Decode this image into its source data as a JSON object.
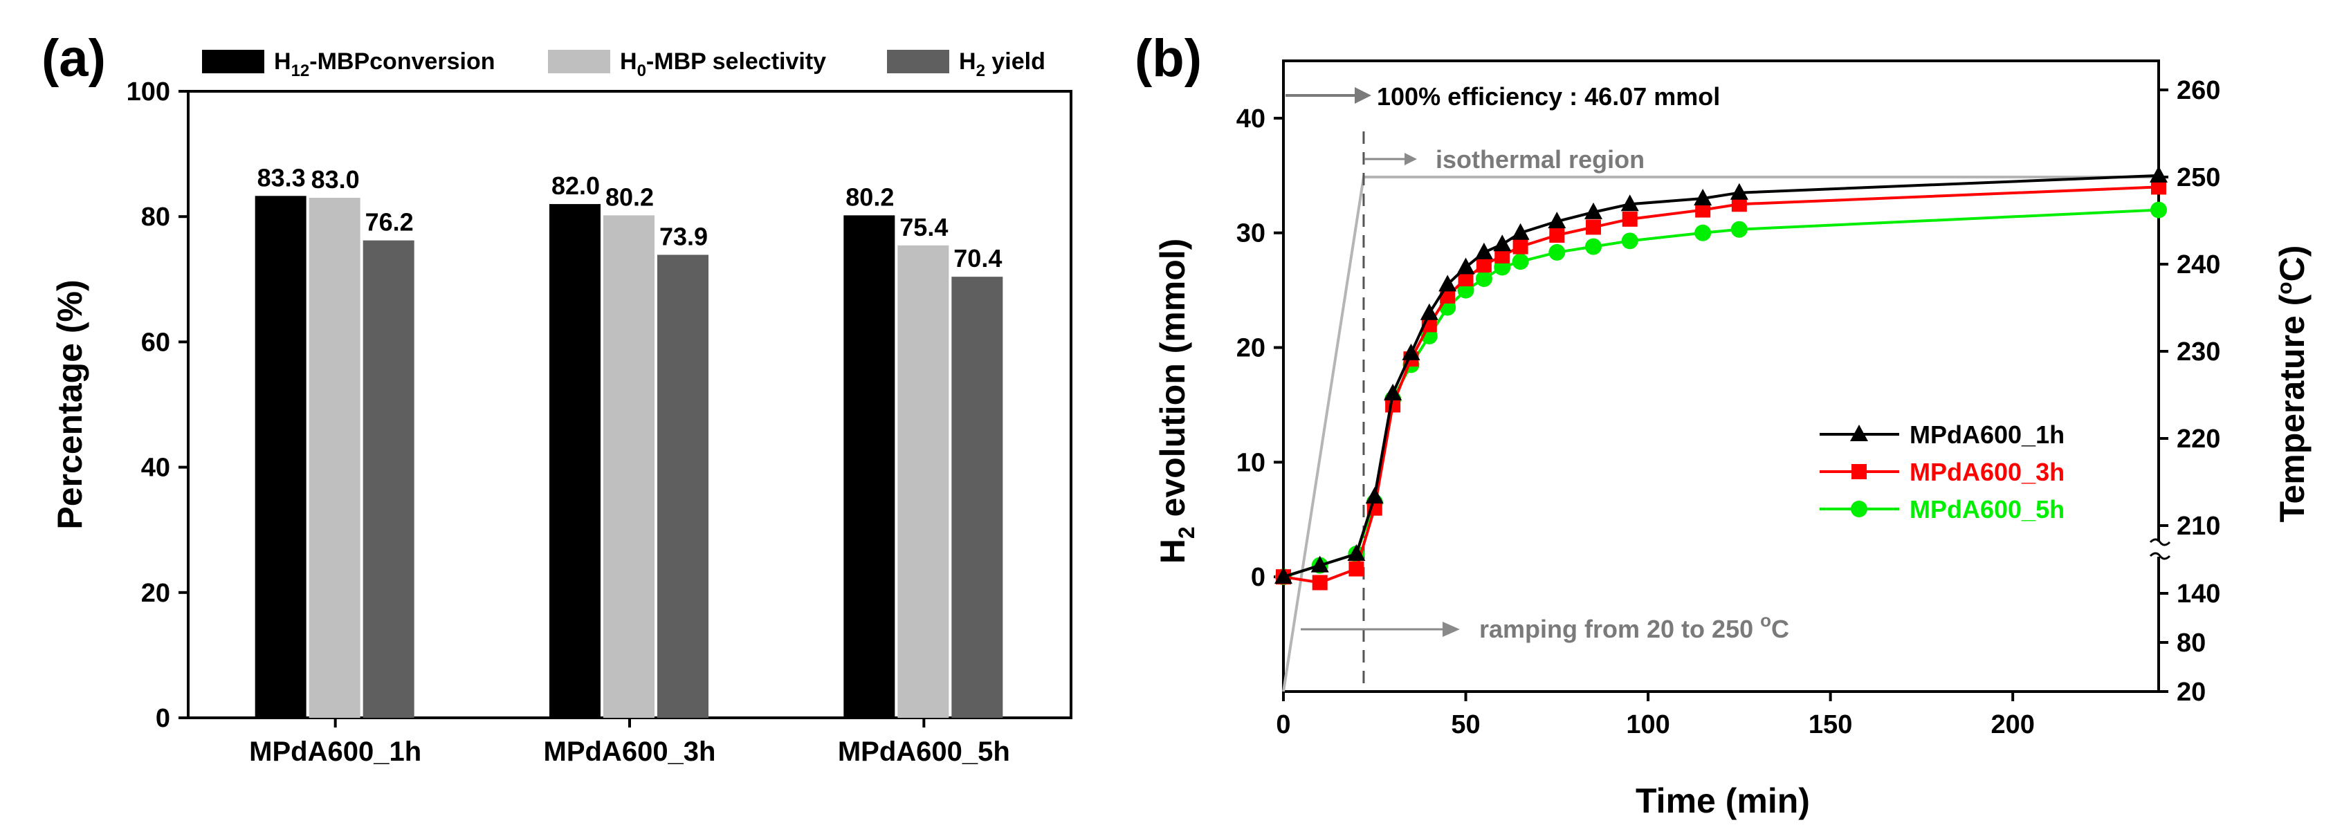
{
  "chart_data": [
    {
      "panel": "(a)",
      "type": "bar",
      "categories": [
        "MPdA600_1h",
        "MPdA600_3h",
        "MPdA600_5h"
      ],
      "series": [
        {
          "name": "H12-MBPconversion",
          "legend_main": "H",
          "legend_sub": "12",
          "legend_rest": "-MBPconversion",
          "color": "#000000",
          "values": [
            83.3,
            82.0,
            80.2
          ],
          "labels": [
            "83.3",
            "82.0",
            "80.2"
          ]
        },
        {
          "name": "H0-MBP selectivity",
          "legend_main": "H",
          "legend_sub": "0",
          "legend_rest": "-MBP selectivity",
          "color": "#bfbfbf",
          "values": [
            83.0,
            80.2,
            75.4
          ],
          "labels": [
            "83.0",
            "80.2",
            "75.4"
          ]
        },
        {
          "name": "H2 yield",
          "legend_main": "H",
          "legend_sub": "2",
          "legend_rest": " yield",
          "color": "#5f5f5f",
          "values": [
            76.2,
            73.9,
            70.4
          ],
          "labels": [
            "76.2",
            "73.9",
            "70.4"
          ]
        }
      ],
      "ylabel": "Percentage (%)",
      "ylim": [
        0,
        100
      ],
      "yticks": [
        "0",
        "20",
        "40",
        "60",
        "80",
        "100"
      ],
      "legend_position": "top"
    },
    {
      "panel": "(b)",
      "type": "line",
      "xlabel": "Time (min)",
      "ylabel_main": "H",
      "ylabel_sub": "2",
      "ylabel_rest": " evolution (mmol)",
      "y2label_main": "Temperature (",
      "y2label_deg": "o",
      "y2label_rest": "C)",
      "xlim": [
        0,
        240
      ],
      "xticks": [
        "0",
        "50",
        "100",
        "150",
        "200"
      ],
      "ylim": [
        -10,
        45
      ],
      "yticks": [
        "0",
        "10",
        "20",
        "30",
        "40"
      ],
      "y2ticks": [
        "20",
        "80",
        "140",
        "210",
        "220",
        "230",
        "240",
        "250",
        "260"
      ],
      "series": [
        {
          "name": "MPdA600_1h",
          "color": "#000000",
          "marker": "triangle",
          "x": [
            0,
            10,
            20,
            25,
            30,
            35,
            40,
            45,
            50,
            55,
            60,
            65,
            75,
            85,
            95,
            115,
            125,
            240
          ],
          "y": [
            0,
            1.0,
            2.0,
            7.0,
            16.0,
            19.5,
            23.0,
            25.5,
            27.0,
            28.3,
            29.0,
            30.0,
            31.0,
            31.8,
            32.5,
            33.0,
            33.5,
            35.0
          ]
        },
        {
          "name": "MPdA600_3h",
          "color": "#ff0000",
          "marker": "square",
          "x": [
            0,
            10,
            20,
            25,
            30,
            35,
            40,
            45,
            50,
            55,
            60,
            65,
            75,
            85,
            95,
            115,
            125,
            240
          ],
          "y": [
            0,
            -0.5,
            0.7,
            6.0,
            15.0,
            19.0,
            22.0,
            24.5,
            26.0,
            27.2,
            28.0,
            28.8,
            29.8,
            30.5,
            31.2,
            32.0,
            32.5,
            34.0
          ]
        },
        {
          "name": "MPdA600_5h",
          "color": "#00ee00",
          "marker": "circle",
          "x": [
            0,
            10,
            20,
            25,
            30,
            35,
            40,
            45,
            50,
            55,
            60,
            65,
            75,
            85,
            95,
            115,
            125,
            240
          ],
          "y": [
            0,
            1.0,
            2.0,
            6.5,
            15.5,
            18.5,
            21.0,
            23.5,
            25.0,
            26.0,
            27.0,
            27.5,
            28.3,
            28.8,
            29.3,
            30.0,
            30.3,
            32.0
          ]
        }
      ],
      "temperature_profile": {
        "x": [
          0,
          22,
          22,
          240
        ],
        "t": [
          20,
          250,
          250,
          250
        ]
      },
      "annotations": {
        "efficiency_main": "100%  efficiency : 46.07 mmol",
        "isothermal": "isothermal region",
        "ramping_main": "ramping from 20 to 250 ",
        "ramping_deg": "o",
        "ramping_unit": "C"
      },
      "legend_position": "center-right"
    }
  ]
}
